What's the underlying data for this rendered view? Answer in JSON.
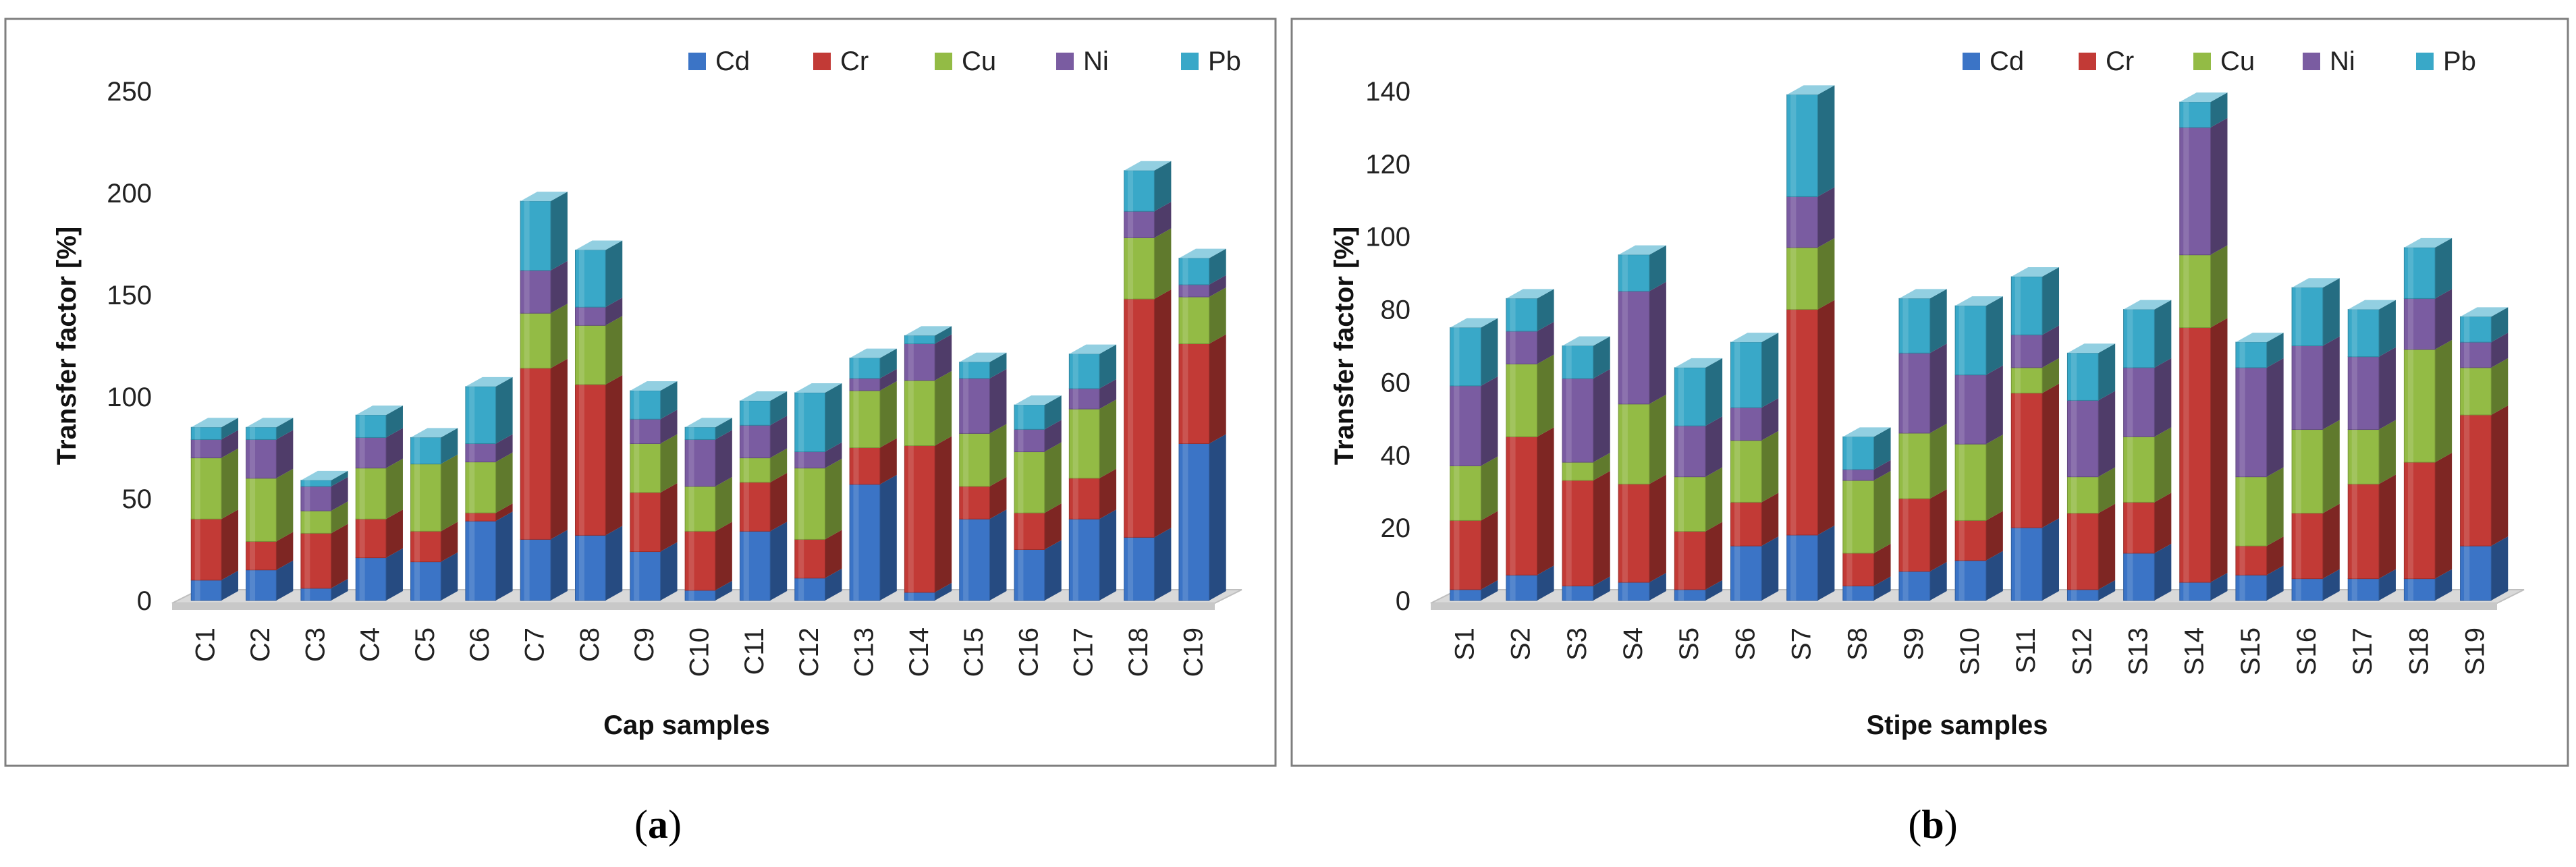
{
  "colors": {
    "Cd": "#3b74c6",
    "Cr": "#c23a36",
    "Cu": "#93bb45",
    "Ni": "#7a5ca1",
    "Pb": "#39a8c8",
    "frame": "#7f7f7f",
    "floor": "#d9d9d9"
  },
  "chart_data": [
    {
      "type": "bar",
      "stacked": true,
      "panel_label": "(a)",
      "panel_letter": "a",
      "title": "",
      "xlabel": "Cap samples",
      "ylabel": "Transfer factor [%]",
      "ylim": [
        0,
        250
      ],
      "yticks": [
        0,
        50,
        100,
        150,
        200,
        250
      ],
      "grid": false,
      "legend_position": "top-right",
      "categories": [
        "C1",
        "C2",
        "C3",
        "C4",
        "C5",
        "C6",
        "C7",
        "C8",
        "C9",
        "C10",
        "C11",
        "C12",
        "C13",
        "C14",
        "C15",
        "C16",
        "C17",
        "C18",
        "C19"
      ],
      "series": [
        {
          "name": "Cd",
          "values": [
            10,
            15,
            6,
            21,
            19,
            39,
            30,
            32,
            24,
            5,
            34,
            11,
            57,
            4,
            40,
            25,
            40,
            31,
            77
          ]
        },
        {
          "name": "Cr",
          "values": [
            30,
            14,
            27,
            19,
            15,
            4,
            84,
            74,
            29,
            29,
            24,
            19,
            18,
            72,
            16,
            18,
            20,
            117,
            49
          ]
        },
        {
          "name": "Cu",
          "values": [
            30,
            31,
            11,
            25,
            33,
            25,
            27,
            29,
            24,
            22,
            12,
            35,
            28,
            32,
            26,
            30,
            34,
            30,
            23
          ]
        },
        {
          "name": "Ni",
          "values": [
            9,
            19,
            12,
            15,
            0,
            9,
            21,
            9,
            12,
            23,
            16,
            8,
            6,
            18,
            27,
            11,
            10,
            13,
            6
          ]
        },
        {
          "name": "Pb",
          "values": [
            6,
            6,
            3,
            11,
            13,
            28,
            34,
            28,
            14,
            6,
            12,
            29,
            10,
            4,
            8,
            12,
            17,
            20,
            13
          ]
        }
      ]
    },
    {
      "type": "bar",
      "stacked": true,
      "panel_label": "(b)",
      "panel_letter": "b",
      "title": "",
      "xlabel": "Stipe samples",
      "ylabel": "Transfer factor [%]",
      "ylim": [
        0,
        140
      ],
      "yticks": [
        0,
        20,
        40,
        60,
        80,
        100,
        120,
        140
      ],
      "grid": false,
      "legend_position": "top-right",
      "categories": [
        "S1",
        "S2",
        "S3",
        "S4",
        "S5",
        "S6",
        "S7",
        "S8",
        "S9",
        "S10",
        "S11",
        "S12",
        "S13",
        "S14",
        "S15",
        "S16",
        "S17",
        "S18",
        "S19"
      ],
      "series": [
        {
          "name": "Cd",
          "values": [
            3,
            7,
            4,
            5,
            3,
            15,
            18,
            4,
            8,
            11,
            20,
            3,
            13,
            5,
            7,
            6,
            6,
            6,
            15
          ]
        },
        {
          "name": "Cr",
          "values": [
            19,
            38,
            29,
            27,
            16,
            12,
            62,
            9,
            20,
            11,
            37,
            21,
            14,
            70,
            8,
            18,
            26,
            32,
            36
          ]
        },
        {
          "name": "Cu",
          "values": [
            15,
            20,
            5,
            22,
            15,
            17,
            17,
            20,
            18,
            21,
            7,
            10,
            18,
            20,
            19,
            23,
            15,
            31,
            13
          ]
        },
        {
          "name": "Ni",
          "values": [
            22,
            9,
            23,
            31,
            14,
            9,
            14,
            3,
            22,
            19,
            9,
            21,
            19,
            35,
            30,
            23,
            20,
            14,
            7
          ]
        },
        {
          "name": "Pb",
          "values": [
            16,
            9,
            9,
            10,
            16,
            18,
            28,
            9,
            15,
            19,
            16,
            13,
            16,
            7,
            7,
            16,
            13,
            14,
            7
          ]
        }
      ]
    }
  ]
}
